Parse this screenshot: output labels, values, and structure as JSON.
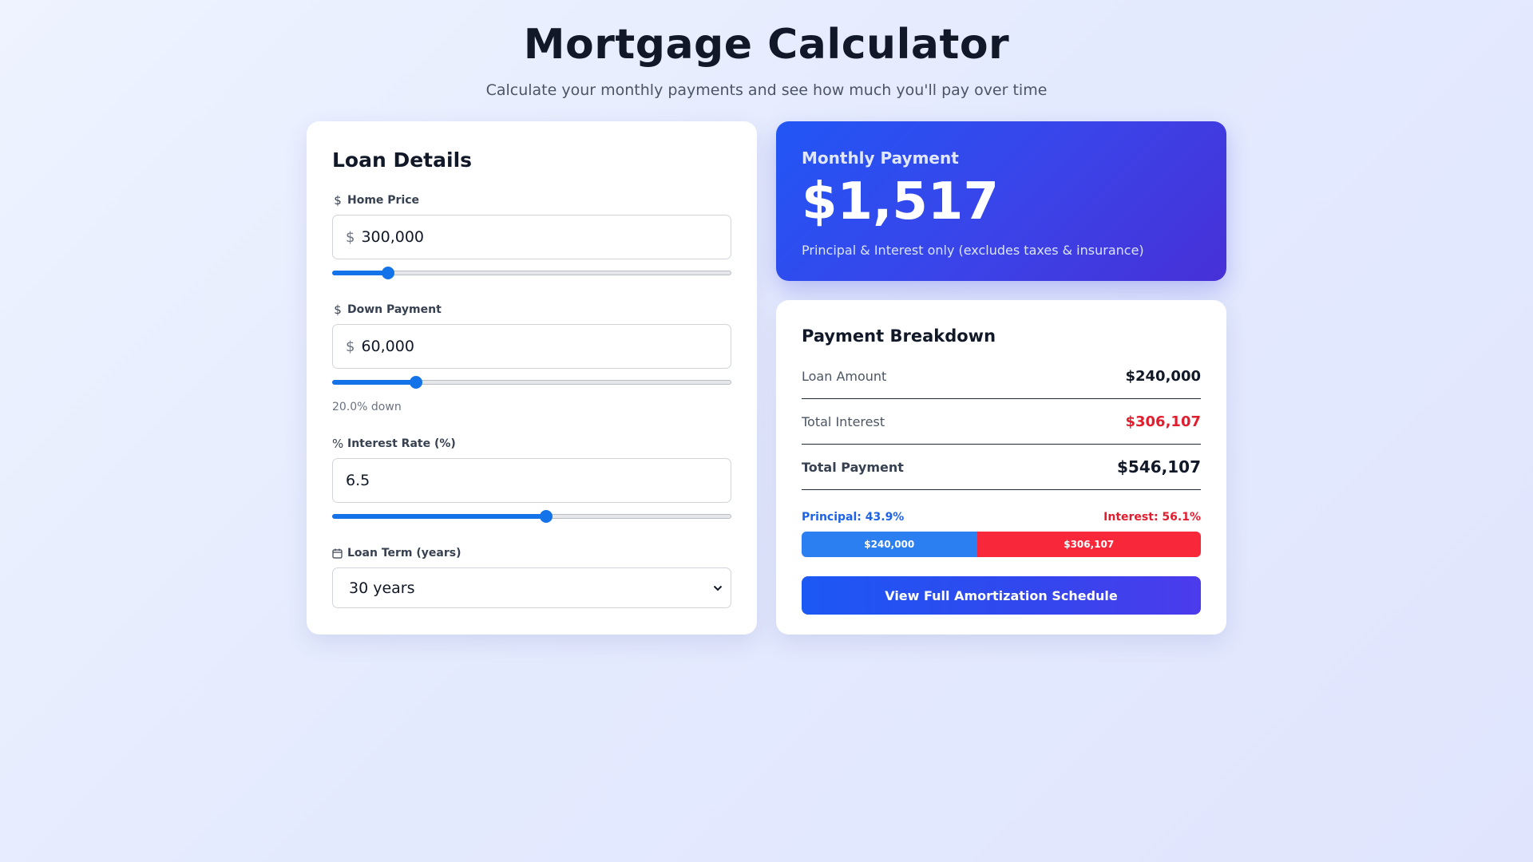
{
  "header": {
    "title": "Mortgage Calculator",
    "subtitle": "Calculate your monthly payments and see how much you'll pay over time"
  },
  "loan_details": {
    "heading": "Loan Details",
    "home_price": {
      "icon": "dollar-icon",
      "icon_glyph": "$",
      "label": "Home Price",
      "prefix": "$",
      "value": "300,000",
      "slider_fraction": 0.14
    },
    "down_payment": {
      "icon": "dollar-icon",
      "icon_glyph": "$",
      "label": "Down Payment",
      "prefix": "$",
      "value": "60,000",
      "slider_fraction": 0.21,
      "helper": "20.0% down"
    },
    "interest_rate": {
      "icon": "percent-icon",
      "icon_glyph": "%",
      "label": "Interest Rate (%)",
      "value": "6.5",
      "slider_fraction": 0.535
    },
    "loan_term": {
      "icon": "calendar-icon",
      "label": "Loan Term (years)",
      "selected": "30 years"
    }
  },
  "monthly_payment": {
    "label": "Monthly Payment",
    "amount": "$1,517",
    "note": "Principal & Interest only (excludes taxes & insurance)"
  },
  "breakdown": {
    "heading": "Payment Breakdown",
    "rows": [
      {
        "label": "Loan Amount",
        "value": "$240,000"
      },
      {
        "label": "Total Interest",
        "value": "$306,107"
      },
      {
        "label": "Total Payment",
        "value": "$546,107"
      }
    ],
    "principal_label": "Principal: 43.9%",
    "interest_label": "Interest: 56.1%",
    "principal_fraction": 0.439,
    "interest_fraction": 0.561,
    "principal_bar_text": "$240,000",
    "interest_bar_text": "$306,107",
    "button_label": "View Full Amortization Schedule"
  },
  "colors": {
    "accent": "#1573ea",
    "interest_red": "#e11d2e",
    "hero_gradient_start": "#2256f5",
    "hero_gradient_end": "#4630d6"
  }
}
